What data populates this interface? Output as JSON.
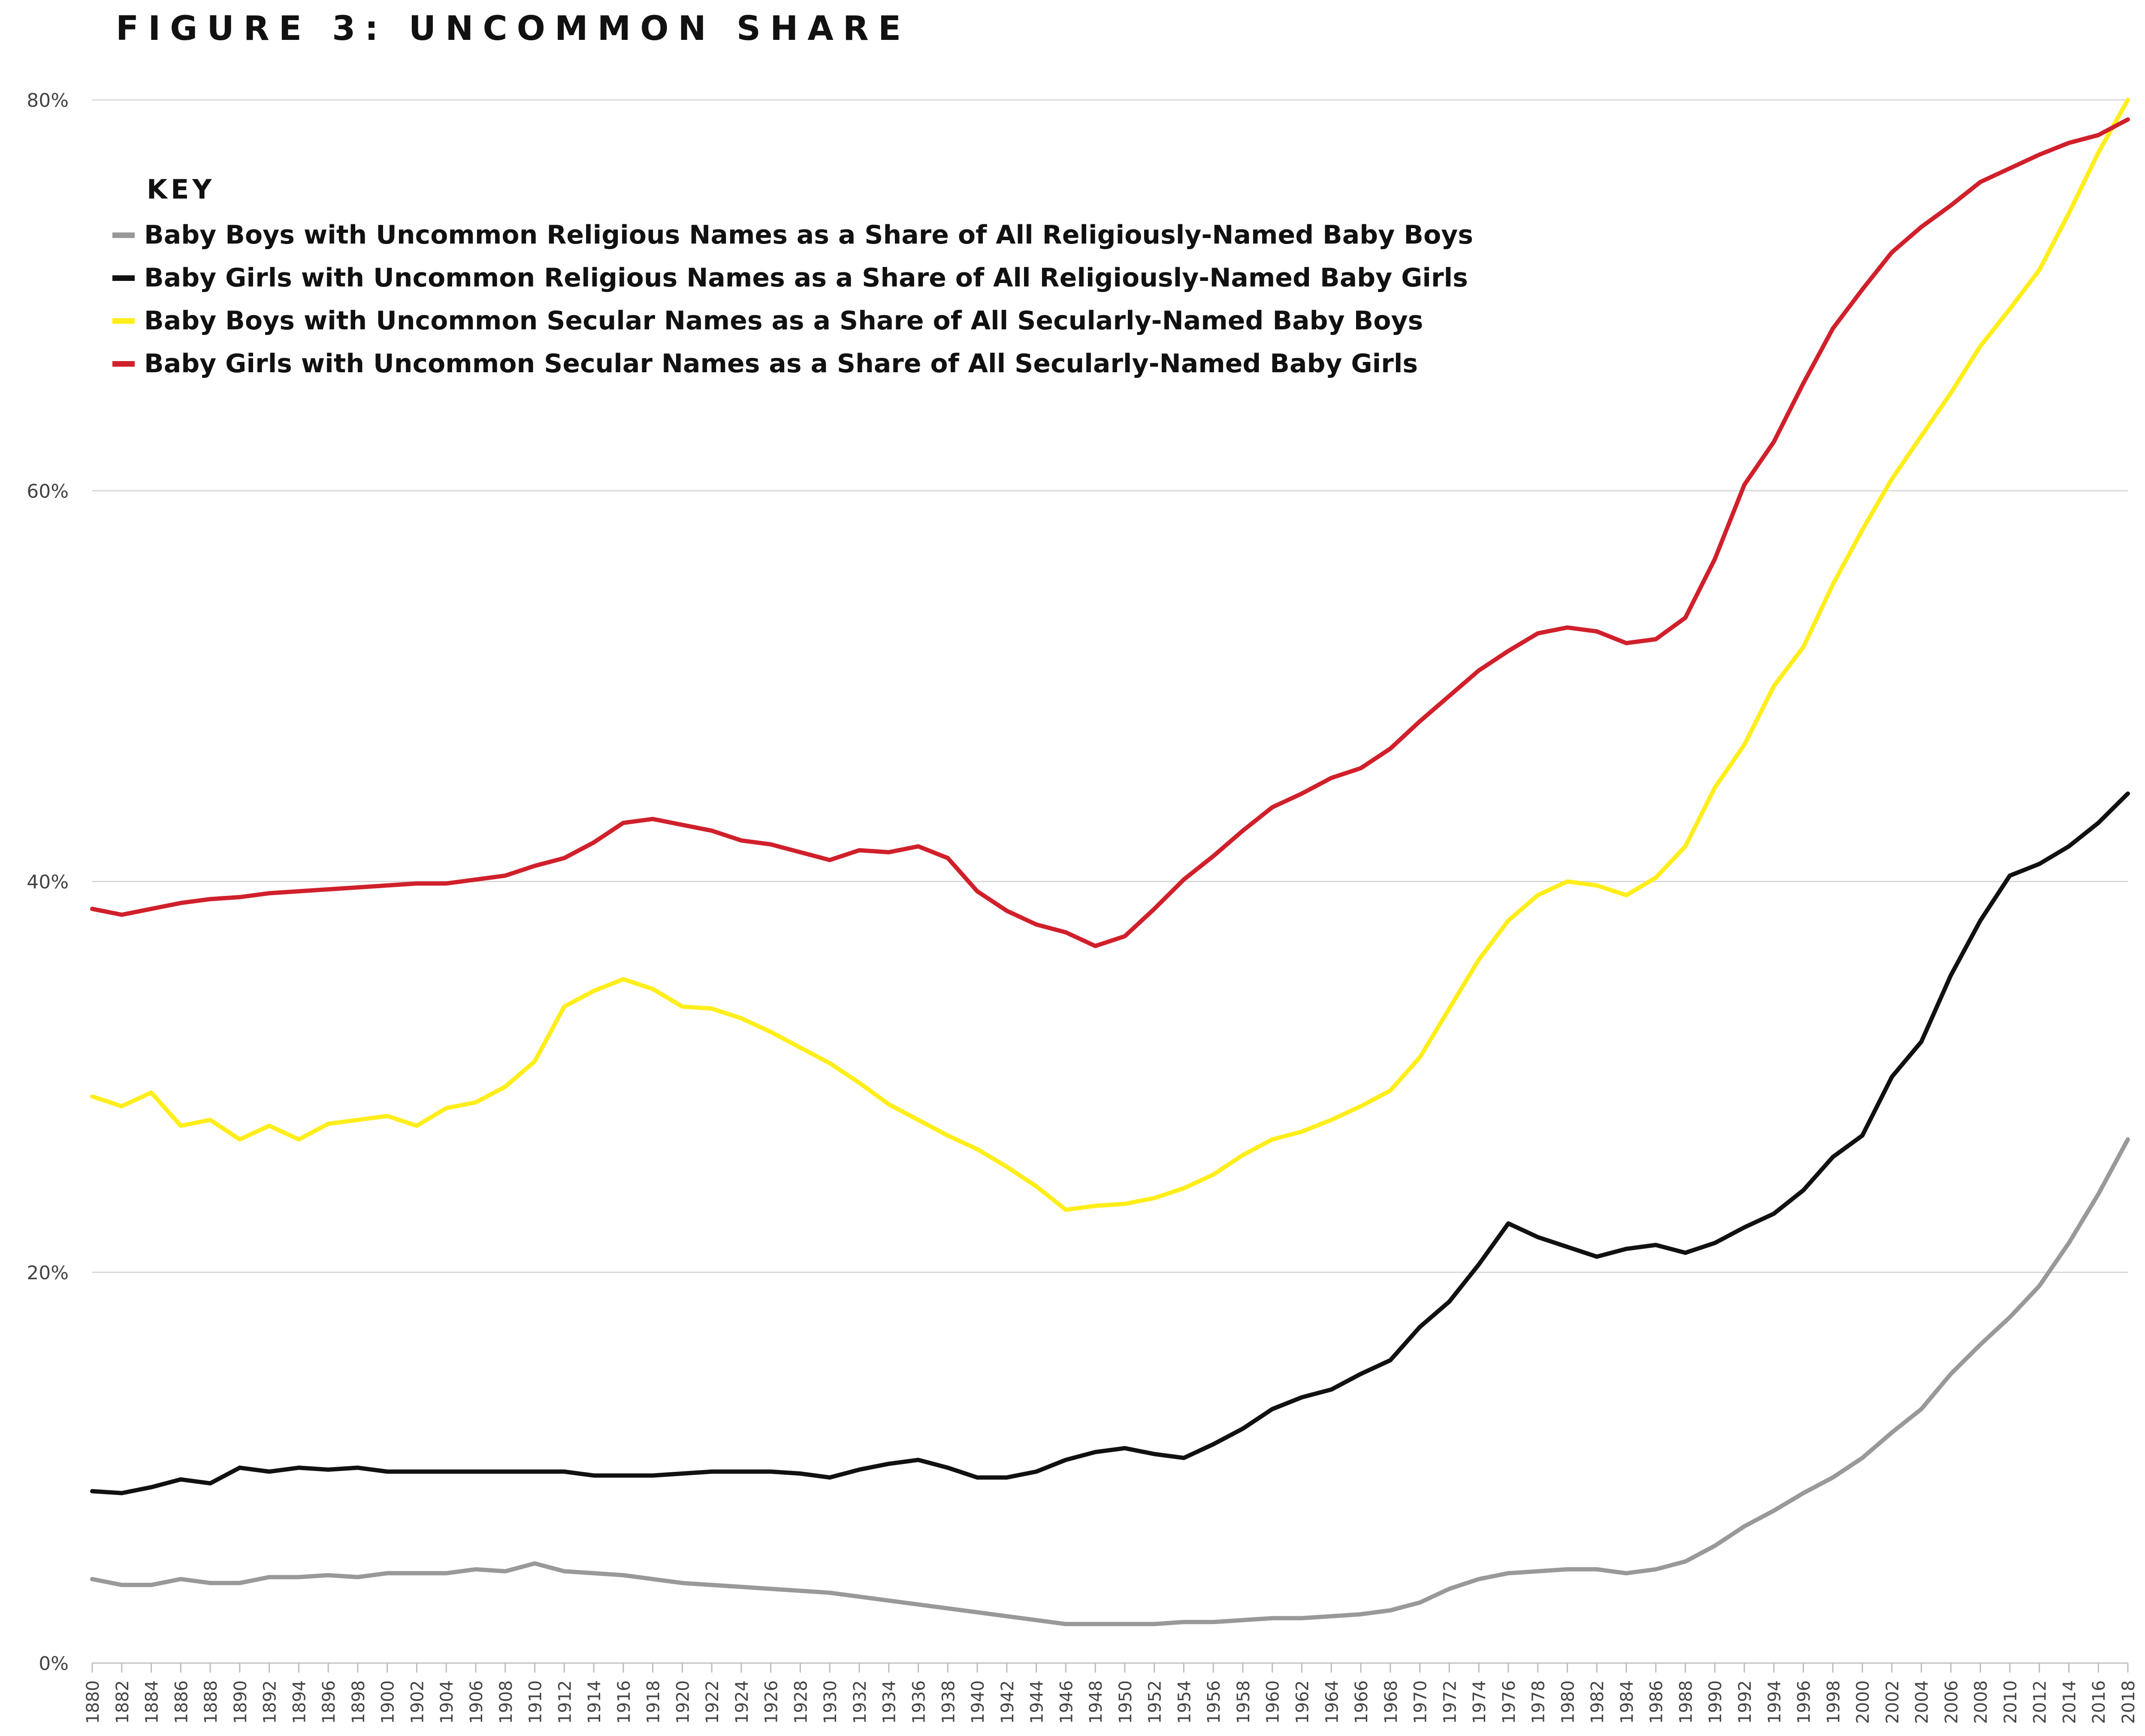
{
  "header": {
    "title": "FIGURE 3: UNCOMMON SHARE"
  },
  "legend": {
    "title": "KEY"
  },
  "chart_data": {
    "type": "line",
    "title": "FIGURE 3: UNCOMMON SHARE",
    "xlabel": "",
    "ylabel": "",
    "xlim": [
      1880,
      2018
    ],
    "ylim": [
      0,
      80
    ],
    "y_ticks": [
      "0%",
      "20%",
      "40%",
      "60%",
      "80%"
    ],
    "x_tick_step": 2,
    "grid": "horizontal",
    "legend_position": "top-left",
    "x_start": 1880,
    "x_end": 2018,
    "series": [
      {
        "name": "Baby Boys with Uncommon Religious Names as a Share of All Religiously-Named Baby Boys",
        "color": "#999999",
        "points": [
          [
            1880,
            4.3
          ],
          [
            1882,
            4.0
          ],
          [
            1884,
            4.0
          ],
          [
            1886,
            4.3
          ],
          [
            1888,
            4.1
          ],
          [
            1890,
            4.1
          ],
          [
            1892,
            4.4
          ],
          [
            1894,
            4.4
          ],
          [
            1896,
            4.5
          ],
          [
            1898,
            4.4
          ],
          [
            1900,
            4.6
          ],
          [
            1902,
            4.6
          ],
          [
            1904,
            4.6
          ],
          [
            1906,
            4.8
          ],
          [
            1908,
            4.7
          ],
          [
            1910,
            5.1
          ],
          [
            1912,
            4.7
          ],
          [
            1914,
            4.6
          ],
          [
            1916,
            4.5
          ],
          [
            1918,
            4.3
          ],
          [
            1920,
            4.1
          ],
          [
            1922,
            4.0
          ],
          [
            1924,
            3.9
          ],
          [
            1926,
            3.8
          ],
          [
            1928,
            3.7
          ],
          [
            1930,
            3.6
          ],
          [
            1932,
            3.4
          ],
          [
            1934,
            3.2
          ],
          [
            1936,
            3.0
          ],
          [
            1938,
            2.8
          ],
          [
            1940,
            2.6
          ],
          [
            1942,
            2.4
          ],
          [
            1944,
            2.2
          ],
          [
            1946,
            2.0
          ],
          [
            1948,
            2.0
          ],
          [
            1950,
            2.0
          ],
          [
            1952,
            2.0
          ],
          [
            1954,
            2.1
          ],
          [
            1956,
            2.1
          ],
          [
            1958,
            2.2
          ],
          [
            1960,
            2.3
          ],
          [
            1962,
            2.3
          ],
          [
            1964,
            2.4
          ],
          [
            1966,
            2.5
          ],
          [
            1968,
            2.7
          ],
          [
            1970,
            3.1
          ],
          [
            1972,
            3.8
          ],
          [
            1974,
            4.3
          ],
          [
            1976,
            4.6
          ],
          [
            1978,
            4.7
          ],
          [
            1980,
            4.8
          ],
          [
            1982,
            4.8
          ],
          [
            1984,
            4.6
          ],
          [
            1986,
            4.8
          ],
          [
            1988,
            5.2
          ],
          [
            1990,
            6.0
          ],
          [
            1992,
            7.0
          ],
          [
            1994,
            7.8
          ],
          [
            1996,
            8.7
          ],
          [
            1998,
            9.5
          ],
          [
            2000,
            10.5
          ],
          [
            2002,
            11.8
          ],
          [
            2004,
            13.0
          ],
          [
            2006,
            14.8
          ],
          [
            2008,
            16.3
          ],
          [
            2010,
            17.7
          ],
          [
            2012,
            19.3
          ],
          [
            2014,
            21.5
          ],
          [
            2016,
            24.0
          ],
          [
            2018,
            26.8
          ]
        ]
      },
      {
        "name": "Baby Girls with Uncommon Religious Names as a Share of All Religiously-Named Baby Girls",
        "color": "#111111",
        "points": [
          [
            1880,
            8.8
          ],
          [
            1882,
            8.7
          ],
          [
            1884,
            9.0
          ],
          [
            1886,
            9.4
          ],
          [
            1888,
            9.2
          ],
          [
            1890,
            10.0
          ],
          [
            1892,
            9.8
          ],
          [
            1894,
            10.0
          ],
          [
            1896,
            9.9
          ],
          [
            1898,
            10.0
          ],
          [
            1900,
            9.8
          ],
          [
            1902,
            9.8
          ],
          [
            1904,
            9.8
          ],
          [
            1906,
            9.8
          ],
          [
            1908,
            9.8
          ],
          [
            1910,
            9.8
          ],
          [
            1912,
            9.8
          ],
          [
            1914,
            9.6
          ],
          [
            1916,
            9.6
          ],
          [
            1918,
            9.6
          ],
          [
            1920,
            9.7
          ],
          [
            1922,
            9.8
          ],
          [
            1924,
            9.8
          ],
          [
            1926,
            9.8
          ],
          [
            1928,
            9.7
          ],
          [
            1930,
            9.5
          ],
          [
            1932,
            9.9
          ],
          [
            1934,
            10.2
          ],
          [
            1936,
            10.4
          ],
          [
            1938,
            10.0
          ],
          [
            1940,
            9.5
          ],
          [
            1942,
            9.5
          ],
          [
            1944,
            9.8
          ],
          [
            1946,
            10.4
          ],
          [
            1948,
            10.8
          ],
          [
            1950,
            11.0
          ],
          [
            1952,
            10.7
          ],
          [
            1954,
            10.5
          ],
          [
            1956,
            11.2
          ],
          [
            1958,
            12.0
          ],
          [
            1960,
            13.0
          ],
          [
            1962,
            13.6
          ],
          [
            1964,
            14.0
          ],
          [
            1966,
            14.8
          ],
          [
            1968,
            15.5
          ],
          [
            1970,
            17.2
          ],
          [
            1972,
            18.5
          ],
          [
            1974,
            20.4
          ],
          [
            1976,
            22.5
          ],
          [
            1978,
            21.8
          ],
          [
            1980,
            21.3
          ],
          [
            1982,
            20.8
          ],
          [
            1984,
            21.2
          ],
          [
            1986,
            21.4
          ],
          [
            1988,
            21.0
          ],
          [
            1990,
            21.5
          ],
          [
            1992,
            22.3
          ],
          [
            1994,
            23.0
          ],
          [
            1996,
            24.2
          ],
          [
            1998,
            25.9
          ],
          [
            2000,
            27.0
          ],
          [
            2002,
            30.0
          ],
          [
            2004,
            31.8
          ],
          [
            2006,
            35.2
          ],
          [
            2008,
            38.0
          ],
          [
            2010,
            40.3
          ],
          [
            2012,
            40.9
          ],
          [
            2014,
            41.8
          ],
          [
            2016,
            43.0
          ],
          [
            2018,
            44.5
          ]
        ]
      },
      {
        "name": "Baby Boys with Uncommon Secular Names as a Share of All Secularly-Named Baby Boys",
        "color": "#ffee1a",
        "points": [
          [
            1880,
            29.0
          ],
          [
            1882,
            28.5
          ],
          [
            1884,
            29.2
          ],
          [
            1886,
            27.5
          ],
          [
            1888,
            27.8
          ],
          [
            1890,
            26.8
          ],
          [
            1892,
            27.5
          ],
          [
            1894,
            26.8
          ],
          [
            1896,
            27.6
          ],
          [
            1898,
            27.8
          ],
          [
            1900,
            28.0
          ],
          [
            1902,
            27.5
          ],
          [
            1904,
            28.4
          ],
          [
            1906,
            28.7
          ],
          [
            1908,
            29.5
          ],
          [
            1910,
            30.8
          ],
          [
            1912,
            33.6
          ],
          [
            1914,
            34.4
          ],
          [
            1916,
            35.0
          ],
          [
            1918,
            34.5
          ],
          [
            1920,
            33.6
          ],
          [
            1922,
            33.5
          ],
          [
            1924,
            33.0
          ],
          [
            1926,
            32.3
          ],
          [
            1928,
            31.5
          ],
          [
            1930,
            30.7
          ],
          [
            1932,
            29.7
          ],
          [
            1934,
            28.6
          ],
          [
            1936,
            27.8
          ],
          [
            1938,
            27.0
          ],
          [
            1940,
            26.3
          ],
          [
            1942,
            25.4
          ],
          [
            1944,
            24.4
          ],
          [
            1946,
            23.2
          ],
          [
            1948,
            23.4
          ],
          [
            1950,
            23.5
          ],
          [
            1952,
            23.8
          ],
          [
            1954,
            24.3
          ],
          [
            1956,
            25.0
          ],
          [
            1958,
            26.0
          ],
          [
            1960,
            26.8
          ],
          [
            1962,
            27.2
          ],
          [
            1964,
            27.8
          ],
          [
            1966,
            28.5
          ],
          [
            1968,
            29.3
          ],
          [
            1970,
            31.0
          ],
          [
            1972,
            33.5
          ],
          [
            1974,
            36.0
          ],
          [
            1976,
            38.0
          ],
          [
            1978,
            39.3
          ],
          [
            1980,
            40.0
          ],
          [
            1982,
            39.8
          ],
          [
            1984,
            39.3
          ],
          [
            1986,
            40.2
          ],
          [
            1988,
            41.8
          ],
          [
            1990,
            44.8
          ],
          [
            1992,
            47.0
          ],
          [
            1994,
            50.0
          ],
          [
            1996,
            52.0
          ],
          [
            1998,
            55.2
          ],
          [
            2000,
            58.0
          ],
          [
            2002,
            60.6
          ],
          [
            2004,
            62.8
          ],
          [
            2006,
            65.0
          ],
          [
            2008,
            67.4
          ],
          [
            2010,
            69.3
          ],
          [
            2012,
            71.3
          ],
          [
            2014,
            74.2
          ],
          [
            2016,
            77.3
          ],
          [
            2018,
            80.0
          ]
        ]
      },
      {
        "name": "Baby Girls with Uncommon Secular Names as a Share of All Secularly-Named Baby Girls",
        "color": "#d0202b",
        "points": [
          [
            1880,
            38.6
          ],
          [
            1882,
            38.3
          ],
          [
            1884,
            38.6
          ],
          [
            1886,
            38.9
          ],
          [
            1888,
            39.1
          ],
          [
            1890,
            39.2
          ],
          [
            1892,
            39.4
          ],
          [
            1894,
            39.5
          ],
          [
            1896,
            39.6
          ],
          [
            1898,
            39.7
          ],
          [
            1900,
            39.8
          ],
          [
            1902,
            39.9
          ],
          [
            1904,
            39.9
          ],
          [
            1906,
            40.1
          ],
          [
            1908,
            40.3
          ],
          [
            1910,
            40.8
          ],
          [
            1912,
            41.2
          ],
          [
            1914,
            42.0
          ],
          [
            1916,
            43.0
          ],
          [
            1918,
            43.2
          ],
          [
            1920,
            42.9
          ],
          [
            1922,
            42.6
          ],
          [
            1924,
            42.1
          ],
          [
            1926,
            41.9
          ],
          [
            1928,
            41.5
          ],
          [
            1930,
            41.1
          ],
          [
            1932,
            41.6
          ],
          [
            1934,
            41.5
          ],
          [
            1936,
            41.8
          ],
          [
            1938,
            41.2
          ],
          [
            1940,
            39.5
          ],
          [
            1942,
            38.5
          ],
          [
            1944,
            37.8
          ],
          [
            1946,
            37.4
          ],
          [
            1948,
            36.7
          ],
          [
            1950,
            37.2
          ],
          [
            1952,
            38.6
          ],
          [
            1954,
            40.1
          ],
          [
            1956,
            41.3
          ],
          [
            1958,
            42.6
          ],
          [
            1960,
            43.8
          ],
          [
            1962,
            44.5
          ],
          [
            1964,
            45.3
          ],
          [
            1966,
            45.8
          ],
          [
            1968,
            46.8
          ],
          [
            1970,
            48.2
          ],
          [
            1972,
            49.5
          ],
          [
            1974,
            50.8
          ],
          [
            1976,
            51.8
          ],
          [
            1978,
            52.7
          ],
          [
            1980,
            53.0
          ],
          [
            1982,
            52.8
          ],
          [
            1984,
            52.2
          ],
          [
            1986,
            52.4
          ],
          [
            1988,
            53.5
          ],
          [
            1990,
            56.5
          ],
          [
            1992,
            60.3
          ],
          [
            1994,
            62.5
          ],
          [
            1996,
            65.5
          ],
          [
            1998,
            68.3
          ],
          [
            2000,
            70.3
          ],
          [
            2002,
            72.2
          ],
          [
            2004,
            73.5
          ],
          [
            2006,
            74.6
          ],
          [
            2008,
            75.8
          ],
          [
            2010,
            76.5
          ],
          [
            2012,
            77.2
          ],
          [
            2014,
            77.8
          ],
          [
            2016,
            78.2
          ],
          [
            2018,
            79.0
          ]
        ]
      }
    ]
  }
}
